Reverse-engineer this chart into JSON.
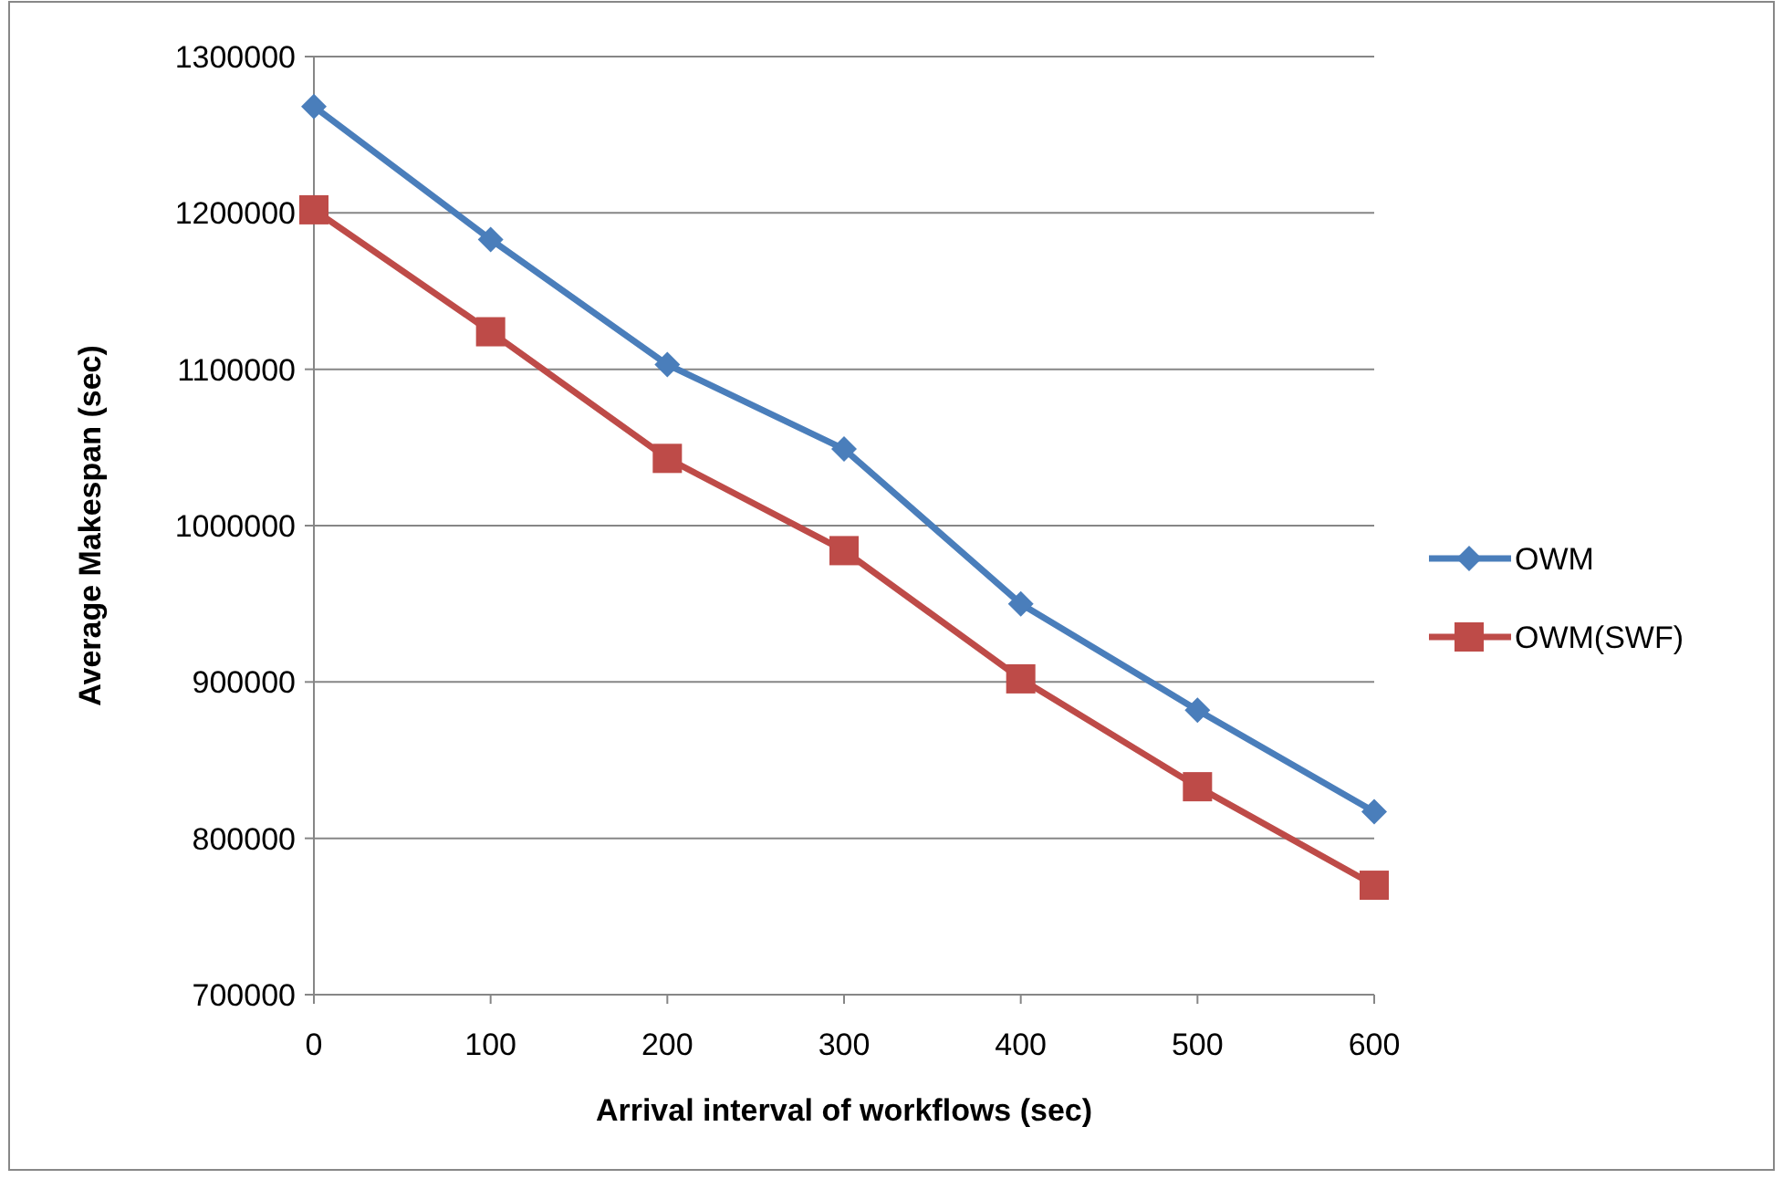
{
  "chart_data": {
    "type": "line",
    "xlabel": "Arrival interval of workflows (sec)",
    "ylabel": "Average Makespan (sec)",
    "x": [
      0,
      100,
      200,
      300,
      400,
      500,
      600
    ],
    "xlim": [
      0,
      600
    ],
    "xticks": [
      0,
      100,
      200,
      300,
      400,
      500,
      600
    ],
    "ylim": [
      700000,
      1300000
    ],
    "yticks": [
      700000,
      800000,
      900000,
      1000000,
      1100000,
      1200000,
      1300000
    ],
    "grid": "y",
    "legend": "right",
    "series": [
      {
        "name": "OWM",
        "color": "#4a7ebb",
        "marker": "diamond",
        "values": [
          1268000,
          1183000,
          1103000,
          1049000,
          950000,
          882000,
          817000
        ]
      },
      {
        "name": "OWM(SWF)",
        "color": "#be4b48",
        "marker": "square",
        "values": [
          1202000,
          1124000,
          1043000,
          984000,
          902000,
          833000,
          770000
        ]
      }
    ]
  }
}
